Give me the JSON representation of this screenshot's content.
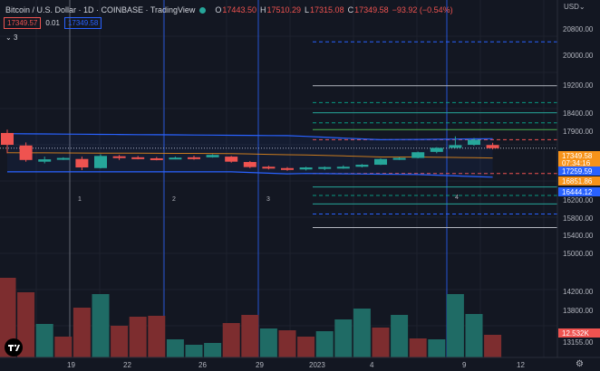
{
  "header": {
    "symbol_title": "Bitcoin / U.S. Dollar · 1D · COINBASE · TradingView",
    "ohlc": [
      {
        "key": "O",
        "value": "17443.50"
      },
      {
        "key": "H",
        "value": "17510.29"
      },
      {
        "key": "L",
        "value": "17315.08"
      },
      {
        "key": "C",
        "value": "17349.58"
      }
    ],
    "change": "−93.92 (−0.54%)",
    "sell_price": "17349.57",
    "spread": "0.01",
    "buy_price": "17349.58",
    "indicators_toggle": "3",
    "currency": "USD"
  },
  "colors": {
    "background": "#131722",
    "bull": "#26a69a",
    "bear": "#ef5350",
    "band": "#2962ff",
    "price_label": "#f7931a"
  },
  "price_axis": {
    "ticks": [
      "20800.00",
      "20000.00",
      "19200.00",
      "18400.00",
      "17900.00",
      "16200.00",
      "15800.00",
      "15400.00",
      "15000.00",
      "14200.00",
      "13800.00",
      "13155.00"
    ],
    "tags": [
      {
        "text": "17349.58",
        "color": "#f7931a"
      },
      {
        "text": "07:34:16",
        "color": "#f7931a"
      },
      {
        "text": "17259.59",
        "color": "#2962ff"
      },
      {
        "text": "16851.86",
        "color": "#f7931a"
      },
      {
        "text": "16444.12",
        "color": "#2962ff"
      },
      {
        "text": "12.532K",
        "color": "#ef5350"
      }
    ]
  },
  "time_axis": {
    "labels": [
      "19",
      "22",
      "26",
      "29",
      "2023",
      "4",
      "9",
      "12"
    ]
  },
  "event_markers": [
    "1",
    "2",
    "3",
    "4"
  ],
  "chart_data": {
    "type": "candlestick",
    "ylim": [
      13155,
      21000
    ],
    "candles": [
      {
        "o": 17800,
        "h": 17900,
        "l": 17200,
        "c": 17450
      },
      {
        "o": 17430,
        "h": 17520,
        "l": 16950,
        "c": 17000
      },
      {
        "o": 16950,
        "h": 17100,
        "l": 16900,
        "c": 17020
      },
      {
        "o": 17050,
        "h": 17080,
        "l": 17000,
        "c": 17060
      },
      {
        "o": 17030,
        "h": 17100,
        "l": 16700,
        "c": 16780
      },
      {
        "o": 16760,
        "h": 17170,
        "l": 16750,
        "c": 17120
      },
      {
        "o": 17110,
        "h": 17150,
        "l": 17000,
        "c": 17080
      },
      {
        "o": 17080,
        "h": 17120,
        "l": 17020,
        "c": 17050
      },
      {
        "o": 17050,
        "h": 17090,
        "l": 16990,
        "c": 17030
      },
      {
        "o": 17030,
        "h": 17100,
        "l": 17020,
        "c": 17070
      },
      {
        "o": 17080,
        "h": 17130,
        "l": 17010,
        "c": 17040
      },
      {
        "o": 17080,
        "h": 17170,
        "l": 17070,
        "c": 17150
      },
      {
        "o": 17100,
        "h": 17120,
        "l": 16920,
        "c": 16950
      },
      {
        "o": 16940,
        "h": 16970,
        "l": 16760,
        "c": 16790
      },
      {
        "o": 16800,
        "h": 16830,
        "l": 16720,
        "c": 16770
      },
      {
        "o": 16760,
        "h": 16790,
        "l": 16680,
        "c": 16730
      },
      {
        "o": 16720,
        "h": 16800,
        "l": 16690,
        "c": 16780
      },
      {
        "o": 16760,
        "h": 16810,
        "l": 16700,
        "c": 16790
      },
      {
        "o": 16790,
        "h": 16840,
        "l": 16740,
        "c": 16800
      },
      {
        "o": 16800,
        "h": 16880,
        "l": 16780,
        "c": 16860
      },
      {
        "o": 16860,
        "h": 17050,
        "l": 16850,
        "c": 17030
      },
      {
        "o": 17030,
        "h": 17080,
        "l": 17000,
        "c": 17060
      },
      {
        "o": 17060,
        "h": 17250,
        "l": 17050,
        "c": 17230
      },
      {
        "o": 17240,
        "h": 17380,
        "l": 17200,
        "c": 17360
      },
      {
        "o": 17360,
        "h": 17700,
        "l": 17350,
        "c": 17440
      },
      {
        "o": 17450,
        "h": 17650,
        "l": 17420,
        "c": 17600
      },
      {
        "o": 17443.5,
        "h": 17510.29,
        "l": 17315.08,
        "c": 17349.58
      }
    ],
    "volume": [
      0.88,
      0.72,
      0.37,
      0.23,
      0.55,
      0.7,
      0.35,
      0.45,
      0.46,
      0.2,
      0.14,
      0.16,
      0.38,
      0.47,
      0.32,
      0.3,
      0.23,
      0.29,
      0.42,
      0.54,
      0.33,
      0.47,
      0.21,
      0.2,
      0.7,
      0.48,
      0.25
    ],
    "volume_bull": [
      false,
      false,
      true,
      false,
      false,
      true,
      false,
      false,
      false,
      true,
      true,
      true,
      false,
      false,
      true,
      false,
      false,
      true,
      true,
      true,
      false,
      true,
      false,
      true,
      true,
      true,
      false
    ],
    "horizontal_levels": [
      {
        "price": 20500,
        "color": "#2962ff",
        "style": "dash"
      },
      {
        "price": 19200,
        "color": "#b2b5be",
        "style": "solid"
      },
      {
        "price": 18700,
        "color": "#089981",
        "style": "dash"
      },
      {
        "price": 18400,
        "color": "#26a69a",
        "style": "solid"
      },
      {
        "price": 18100,
        "color": "#089981",
        "style": "dash"
      },
      {
        "price": 17900,
        "color": "#4caf50",
        "style": "solid"
      },
      {
        "price": 17600,
        "color": "#ef5350",
        "style": "dash"
      },
      {
        "price": 16600,
        "color": "#ef5350",
        "style": "dash"
      },
      {
        "price": 16200,
        "color": "#26a69a",
        "style": "solid"
      },
      {
        "price": 15950,
        "color": "#089981",
        "style": "dash"
      },
      {
        "price": 15700,
        "color": "#26a69a",
        "style": "solid"
      },
      {
        "price": 15400,
        "color": "#2962ff",
        "style": "dash"
      },
      {
        "price": 15000,
        "color": "#b2b5be",
        "style": "solid"
      }
    ]
  }
}
